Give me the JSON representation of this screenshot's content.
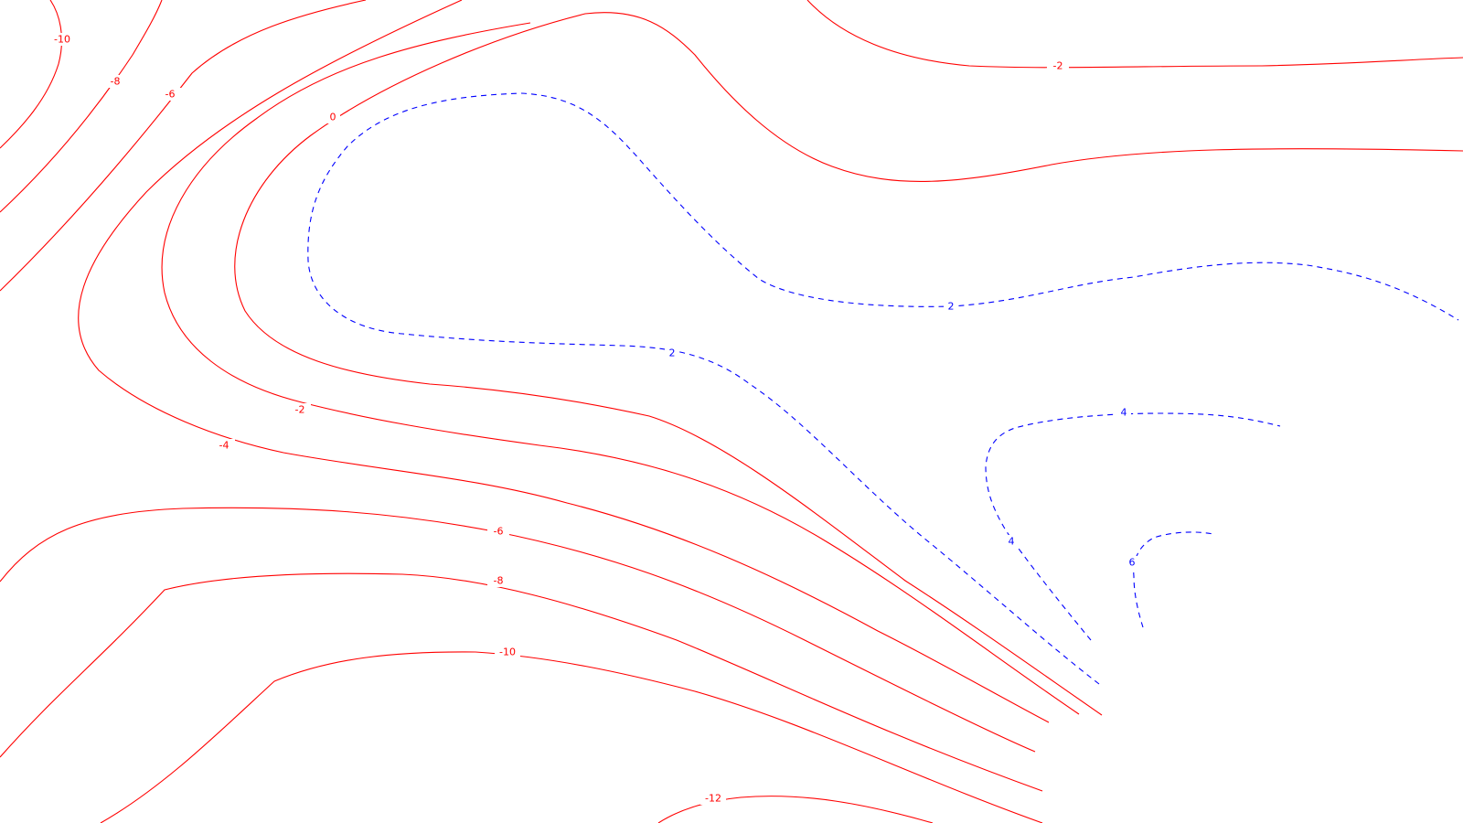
{
  "map": {
    "colors": {
      "negative": "#ff0000",
      "positive": "#0000ff",
      "background": "#ffffff"
    },
    "negative_line_style": "solid",
    "positive_line_style": "dashed",
    "contour_labels": {
      "n10_top": "-10",
      "n8_top": "-8",
      "n6_top": "-6",
      "zero": "0",
      "n2_top": "-2",
      "p2_east": "2",
      "p2_mid": "2",
      "n2_mid": "-2",
      "n4": "-4",
      "p4_top": "4",
      "p4_side": "4",
      "n6": "-6",
      "p6": "6",
      "n8": "-8",
      "n10": "-10",
      "n12": "-12"
    }
  }
}
